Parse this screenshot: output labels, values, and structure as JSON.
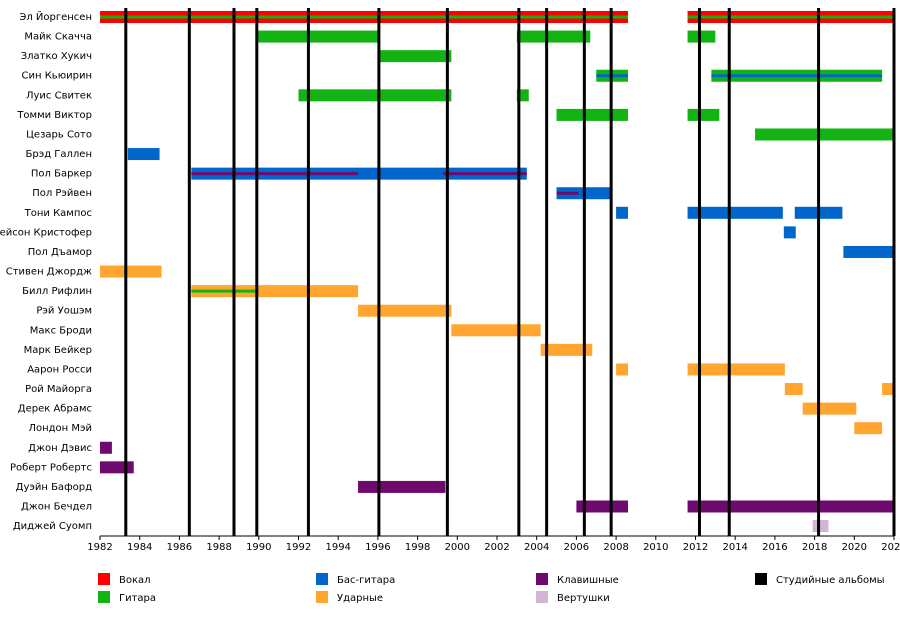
{
  "chart_data": {
    "type": "timeline",
    "xlim": [
      1982,
      2022
    ],
    "xticks": [
      1982,
      1984,
      1986,
      1988,
      1990,
      1992,
      1994,
      1996,
      1998,
      2000,
      2002,
      2004,
      2006,
      2008,
      2010,
      2012,
      2014,
      2016,
      2018,
      2020,
      2022
    ],
    "roles": [
      {
        "name": "Вокал",
        "color": "#ff0000"
      },
      {
        "name": "Гитара",
        "color": "#12b312"
      },
      {
        "name": "Бас-гитара",
        "color": "#0066cc"
      },
      {
        "name": "Ударные",
        "color": "#ffa530"
      },
      {
        "name": "Клавишные",
        "color": "#6e0a6e"
      },
      {
        "name": "Вертушки",
        "color": "#d4b4d4"
      }
    ],
    "albums": {
      "name": "Студийные альбомы",
      "color": "#000000",
      "years": [
        1983.3,
        1986.5,
        1988.75,
        1989.9,
        1992.5,
        1996.05,
        1999.5,
        2003.1,
        2004.5,
        2006.4,
        2007.75,
        2012.2,
        2013.7,
        2018.2,
        2022
      ]
    },
    "members": [
      {
        "name": "Эл Йоргенсен",
        "bars": [
          {
            "role": 0,
            "start": 1982,
            "end": 2008.6
          },
          {
            "role": 1,
            "start": 1982,
            "end": 2008.6,
            "stripe": true
          },
          {
            "role": 0,
            "start": 2011.6,
            "end": 2022
          },
          {
            "role": 1,
            "start": 2011.6,
            "end": 2022,
            "stripe": true
          }
        ]
      },
      {
        "name": "Майк Скачча",
        "bars": [
          {
            "role": 1,
            "start": 1989.95,
            "end": 1996.05
          },
          {
            "role": 1,
            "start": 2003,
            "end": 2006.7
          },
          {
            "role": 1,
            "start": 2011.6,
            "end": 2013
          }
        ]
      },
      {
        "name": "Златко Хукич",
        "bars": [
          {
            "role": 1,
            "start": 1996.05,
            "end": 1999.7
          }
        ]
      },
      {
        "name": "Син Кьюирин",
        "bars": [
          {
            "role": 1,
            "start": 2007,
            "end": 2008.6
          },
          {
            "role": 2,
            "start": 2007,
            "end": 2008.6,
            "stripe": true
          },
          {
            "role": 1,
            "start": 2012.8,
            "end": 2021.4
          },
          {
            "role": 2,
            "start": 2012.8,
            "end": 2021.4,
            "stripe": true
          }
        ]
      },
      {
        "name": "Луис Свитек",
        "bars": [
          {
            "role": 1,
            "start": 1992,
            "end": 1999.7
          },
          {
            "role": 1,
            "start": 2003,
            "end": 2003.6
          }
        ]
      },
      {
        "name": "Томми Виктор",
        "bars": [
          {
            "role": 1,
            "start": 2005,
            "end": 2008.6
          },
          {
            "role": 1,
            "start": 2011.6,
            "end": 2013.2
          }
        ]
      },
      {
        "name": "Цезарь Сото",
        "bars": [
          {
            "role": 1,
            "start": 2015,
            "end": 2022
          }
        ]
      },
      {
        "name": "Брэд Галлен",
        "bars": [
          {
            "role": 2,
            "start": 1983.4,
            "end": 1985
          }
        ]
      },
      {
        "name": "Пол Баркер",
        "bars": [
          {
            "role": 2,
            "start": 1986.6,
            "end": 2003.5
          },
          {
            "role": 4,
            "start": 1986.6,
            "end": 1995,
            "stripe": true
          },
          {
            "role": 4,
            "start": 1999.3,
            "end": 2003.5,
            "stripe": true
          }
        ]
      },
      {
        "name": "Пол Рэйвен",
        "bars": [
          {
            "role": 2,
            "start": 2005,
            "end": 2007.8
          },
          {
            "role": 4,
            "start": 2005,
            "end": 2006.1,
            "stripe": true
          }
        ]
      },
      {
        "name": "Тони Кампос",
        "bars": [
          {
            "role": 2,
            "start": 2008,
            "end": 2008.6
          },
          {
            "role": 2,
            "start": 2011.6,
            "end": 2016.4
          },
          {
            "role": 2,
            "start": 2017,
            "end": 2019.4
          }
        ]
      },
      {
        "name": "Джейсон Кристофер",
        "bars": [
          {
            "role": 2,
            "start": 2016.45,
            "end": 2017.05
          }
        ]
      },
      {
        "name": "Пол Дъамор",
        "bars": [
          {
            "role": 2,
            "start": 2019.45,
            "end": 2022
          }
        ]
      },
      {
        "name": "Стивен Джордж",
        "bars": [
          {
            "role": 3,
            "start": 1982,
            "end": 1985.1
          }
        ]
      },
      {
        "name": "Билл Рифлин",
        "bars": [
          {
            "role": 3,
            "start": 1986.6,
            "end": 1995
          },
          {
            "role": 1,
            "start": 1986.6,
            "end": 1989.95,
            "stripe": true
          }
        ]
      },
      {
        "name": "Рэй Уошэм",
        "bars": [
          {
            "role": 3,
            "start": 1995,
            "end": 1999.7
          }
        ]
      },
      {
        "name": "Макс Броди",
        "bars": [
          {
            "role": 3,
            "start": 1999.7,
            "end": 2004.2
          }
        ]
      },
      {
        "name": "Марк Бейкер",
        "bars": [
          {
            "role": 3,
            "start": 2004.2,
            "end": 2006.8
          }
        ]
      },
      {
        "name": "Аарон Росси",
        "bars": [
          {
            "role": 3,
            "start": 2008,
            "end": 2008.6
          },
          {
            "role": 3,
            "start": 2011.6,
            "end": 2016.5
          }
        ]
      },
      {
        "name": "Рой Майорга",
        "bars": [
          {
            "role": 3,
            "start": 2016.5,
            "end": 2017.4
          },
          {
            "role": 3,
            "start": 2021.4,
            "end": 2022
          }
        ]
      },
      {
        "name": "Дерек Абрамс",
        "bars": [
          {
            "role": 3,
            "start": 2017.4,
            "end": 2020.1
          }
        ]
      },
      {
        "name": "Лондон Мэй",
        "bars": [
          {
            "role": 3,
            "start": 2020,
            "end": 2021.4
          }
        ]
      },
      {
        "name": "Джон Дэвис",
        "bars": [
          {
            "role": 4,
            "start": 1982,
            "end": 1982.6
          }
        ]
      },
      {
        "name": "Роберт Робертс",
        "bars": [
          {
            "role": 4,
            "start": 1982,
            "end": 1983.7
          }
        ]
      },
      {
        "name": "Дуэйн Бафорд",
        "bars": [
          {
            "role": 4,
            "start": 1995,
            "end": 1999.4
          }
        ]
      },
      {
        "name": "Джон Бечдел",
        "bars": [
          {
            "role": 4,
            "start": 2006,
            "end": 2008.6
          },
          {
            "role": 4,
            "start": 2011.6,
            "end": 2022
          }
        ]
      },
      {
        "name": "Диджей Суомп",
        "bars": [
          {
            "role": 5,
            "start": 2017.9,
            "end": 2018.7
          }
        ]
      }
    ]
  }
}
